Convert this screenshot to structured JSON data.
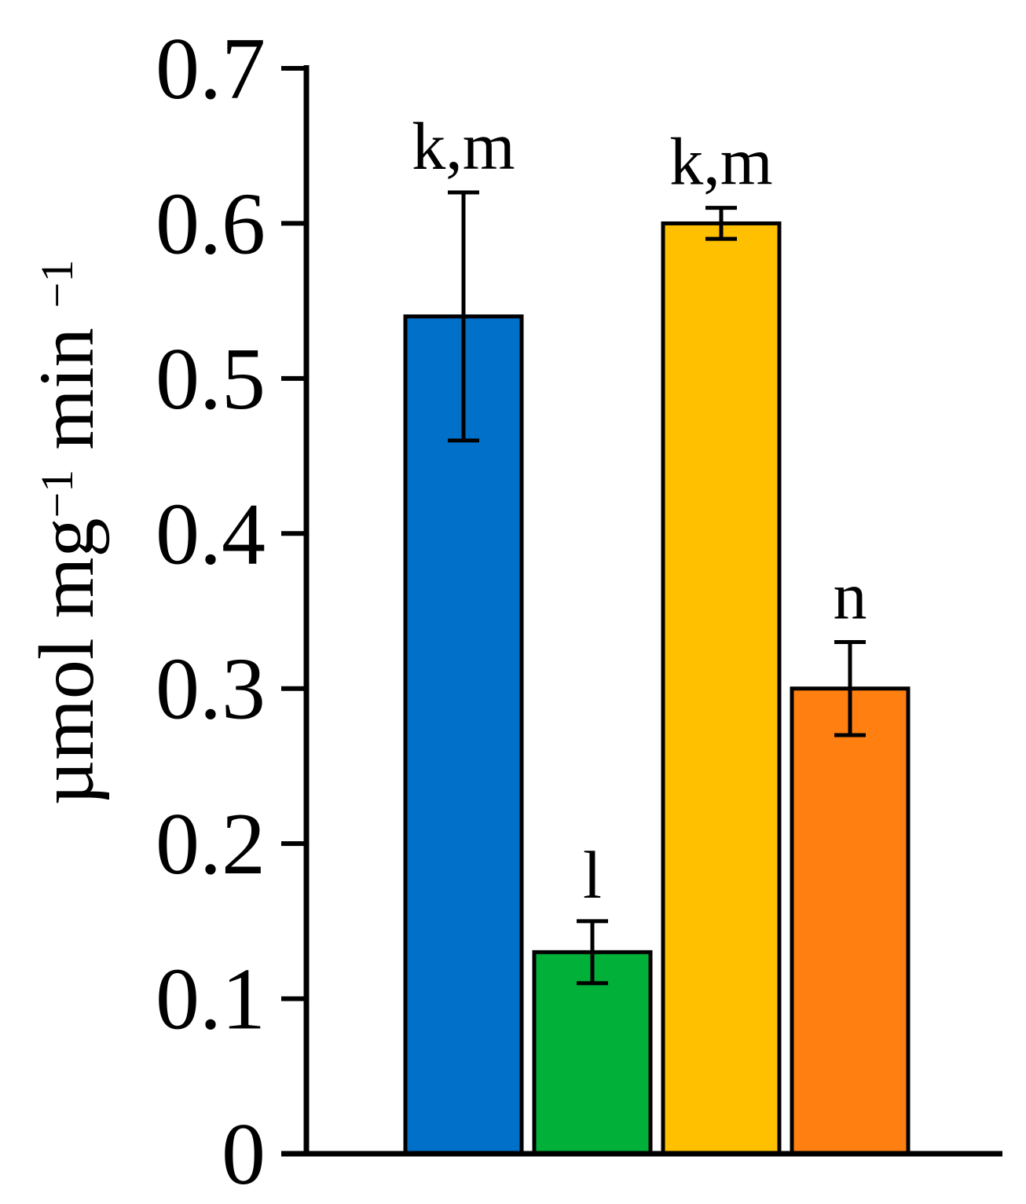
{
  "chart_data": {
    "type": "bar",
    "ylabel_parts": [
      {
        "text": "µmol mg",
        "sup": false
      },
      {
        "text": "−1",
        "sup": true
      },
      {
        "text": " min ",
        "sup": false
      },
      {
        "text": "−1",
        "sup": true
      }
    ],
    "ylim": [
      0,
      0.7
    ],
    "yticks": [
      {
        "value": 0,
        "label": "0"
      },
      {
        "value": 0.1,
        "label": "0.1"
      },
      {
        "value": 0.2,
        "label": "0.2"
      },
      {
        "value": 0.3,
        "label": "0.3"
      },
      {
        "value": 0.4,
        "label": "0.4"
      },
      {
        "value": 0.5,
        "label": "0.5"
      },
      {
        "value": 0.6,
        "label": "0.6"
      },
      {
        "value": 0.7,
        "label": "0.7"
      }
    ],
    "grid": false,
    "bars": [
      {
        "value": 0.54,
        "err_low": 0.46,
        "err_high": 0.62,
        "label": "k,m",
        "color": "#0070C8"
      },
      {
        "value": 0.13,
        "err_low": 0.11,
        "err_high": 0.15,
        "label": "l",
        "color": "#00B038"
      },
      {
        "value": 0.6,
        "err_low": 0.59,
        "err_high": 0.61,
        "label": "k,m",
        "color": "#FFC000"
      },
      {
        "value": 0.3,
        "err_low": 0.27,
        "err_high": 0.33,
        "label": "n",
        "color": "#FF8010"
      }
    ]
  }
}
